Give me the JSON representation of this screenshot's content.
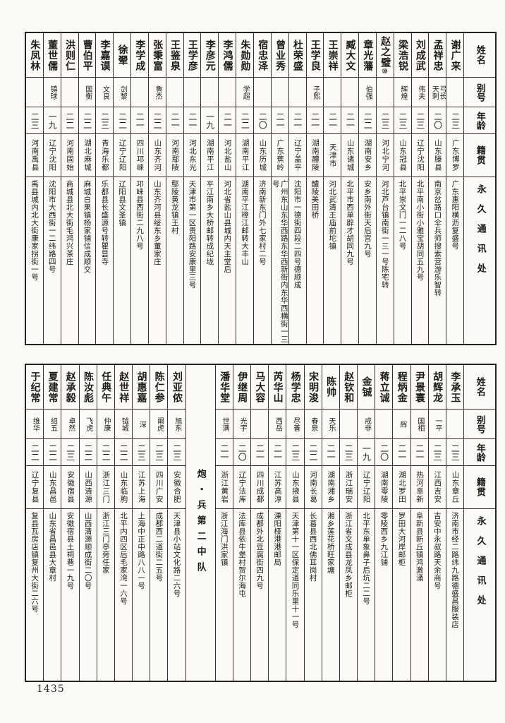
{
  "page": {
    "number": "1435"
  },
  "columns_header": {
    "name": "姓名",
    "alias": "别号",
    "age": "年龄",
    "origin": "籍贯",
    "address": "永久通讯处"
  },
  "tables": [
    {
      "id": "top",
      "entries": [
        {
          "name": "谢广来",
          "alias": "",
          "age": "二三",
          "origin": "广东博罗",
          "address": "广东惠阳横沥复盛号"
        },
        {
          "name": "孟祥忠",
          "alias": "弓长\n天刺",
          "age": "二〇",
          "origin": "山东滕县",
          "address": "南京岔路口伞兵师搜索营游乐智转"
        },
        {
          "name": "刘成武",
          "alias": "伟夫",
          "age": "二三",
          "origin": "辽宁沈阳",
          "address": "北平南小街小雅宝胡同五九号"
        },
        {
          "name": "梁浩锐",
          "alias": "辉煌",
          "age": "二三",
          "origin": "山东冠县",
          "address": "北平崇文门一二八号"
        },
        {
          "name": "赵之璧",
          "alias": "",
          "age": "二三",
          "origin": "河北宁河",
          "address": "河北芦台镇南街一三一号陈宅转",
          "note": "⑳"
        },
        {
          "name": "章光藩",
          "alias": "伯强",
          "age": "二二",
          "origin": "湖南安乡",
          "address": "安乡南外街天后宫九号"
        },
        {
          "name": "臧大文",
          "alias": "",
          "age": "二一",
          "origin": "山东诸城",
          "address": "北平市西单辟才胡同九号"
        },
        {
          "name": "王崇祥",
          "alias": "",
          "age": "二一",
          "origin": "天津市",
          "address": "河北武清王庙前坨镇"
        },
        {
          "name": "王学良",
          "alias": "子熙",
          "age": "二一",
          "origin": "湖南醴陵",
          "address": "醴陵美田桥"
        },
        {
          "name": "杜荣盛",
          "alias": "",
          "age": "二一",
          "origin": "辽宁盖平",
          "address": "沈阳市一德街四段二四号德顺成"
        },
        {
          "name": "曾业秀",
          "alias": "",
          "age": "二一",
          "origin": "广东蕉岭",
          "address": "广州东山东华西路东华西新街内东华西横街一三号"
        },
        {
          "name": "宿忠泽",
          "alias": "",
          "age": "二〇",
          "origin": "山东历城",
          "address": "济南新东门外七家村二号"
        },
        {
          "name": "朱勋勋",
          "alias": "学超",
          "age": "二二",
          "origin": "湖南平江",
          "address": "湖南平江樟江邮转大丰山"
        },
        {
          "name": "李鸿儒",
          "alias": "",
          "age": "二一",
          "origin": "河北盐山",
          "address": "河北省盐山县城内天主堂后"
        },
        {
          "name": "李彦元",
          "alias": "",
          "age": "一九",
          "origin": "湖南平江",
          "address": "平江南乡大桥邮转成纪垅"
        },
        {
          "name": "王学彦",
          "alias": "",
          "age": "二一",
          "origin": "河北东光",
          "address": "天津市第一区贵阳路安康里三号"
        },
        {
          "name": "王鉴泉",
          "alias": "",
          "age": "二一",
          "origin": "河南鄢陵",
          "address": "鄢陵黄龙镇王村"
        },
        {
          "name": "张秉富",
          "alias": "鲁杰",
          "age": "二二",
          "origin": "山东齐河",
          "address": "山东齐河县绥东乡董家庄"
        },
        {
          "name": "李学成",
          "alias": "",
          "age": "二一",
          "origin": "四川邛崃",
          "address": "邛崃县西街二九八号"
        },
        {
          "name": "徐翚",
          "alias": "剑黎",
          "age": "二二",
          "origin": "辽宁辽阳",
          "address": "辽阳县文圣镇"
        },
        {
          "name": "李嘉谟",
          "alias": "文良",
          "age": "二三",
          "origin": "青海乐都",
          "address": "乐都县长盛源号转瞿昙寺"
        },
        {
          "name": "曹伯平",
          "alias": "国衡",
          "age": "二二",
          "origin": "湖北麻城",
          "address": "麻城白果镇杨家铺信成顺交"
        },
        {
          "name": "洪则仁",
          "alias": "",
          "age": "二二",
          "origin": "河南固始",
          "address": "商城县北大街毛鸿兴茶庄"
        },
        {
          "name": "董世儒",
          "alias": "镇球",
          "age": "一九",
          "origin": "辽宁沈阳",
          "address": "沈阳市大西街一二纬路四号"
        },
        {
          "name": "朱凤林",
          "alias": "",
          "age": "二三",
          "origin": "河南禹县",
          "address": "禹县城内北大街康家拐街一号"
        }
      ]
    },
    {
      "id": "bottom",
      "entries": [
        {
          "name": "李承玉",
          "alias": "",
          "age": "二三",
          "origin": "山东章丘",
          "address": "济南市经二路纬九路德盛昌服装店"
        },
        {
          "name": "胡辉龙",
          "alias": "一平",
          "age": "二三",
          "origin": "江西吉安",
          "address": "吉安中永叔路天余商号"
        },
        {
          "name": "尹景寰",
          "alias": "国相",
          "age": "二一",
          "origin": "热河阜新",
          "address": "阜新县新丘镇鸿激涌"
        },
        {
          "name": "程炳金",
          "alias": "辉",
          "age": "二一",
          "origin": "湖北罗田",
          "address": "罗田大河岸邮柜"
        },
        {
          "name": "蒋立诚",
          "alias": "",
          "age": "二〇",
          "origin": "湖南零陵",
          "address": "零陵西乡九江铺"
        },
        {
          "name": "金铖",
          "alias": "戒非",
          "age": "一九",
          "origin": "辽宁辽阳",
          "address": "北平东单象鼻子后坑二二号"
        },
        {
          "name": "赵钦和",
          "alias": "",
          "age": "二三",
          "origin": "浙江瑞安",
          "address": "浙江省文成县龙凤乡邮柜"
        },
        {
          "name": "陈帅",
          "alias": "天乐",
          "age": "二一",
          "origin": "湖南湘乡",
          "address": "湘乡莲花桥旺家塘"
        },
        {
          "name": "宋明浚",
          "alias": "春泉",
          "age": "二二",
          "origin": "河南长葛",
          "address": "长葛县西北佛耳岗村"
        },
        {
          "name": "杨学忠",
          "alias": "尽善",
          "age": "二三",
          "origin": "山东掖县",
          "address": "天津第十一区保定道同乐里十一号"
        },
        {
          "name": "芮华山",
          "alias": "西岳",
          "age": "二一",
          "origin": "江苏高淳",
          "address": "溧阳桠港港邮局"
        },
        {
          "name": "马大容",
          "alias": "",
          "age": "二一",
          "origin": "四川成都",
          "address": "成都外北豆腐街四九号"
        },
        {
          "name": "伊继周",
          "alias": "光宇",
          "age": "二〇",
          "origin": "辽宁法库",
          "address": "法库县依牛堡村贺尔海屯"
        },
        {
          "name": "潘华堂",
          "alias": "世满",
          "age": "二一",
          "origin": "浙江黄岩",
          "address": "浙江海门洪家镇"
        },
        {
          "divider": "炮・兵第二中队"
        },
        {
          "name": "刘亚侬",
          "alias": "旭东",
          "age": "二三",
          "origin": "安徽合肥",
          "address": "天津县小站文化路二六号"
        },
        {
          "name": "陈仁参",
          "alias": "阚虎",
          "age": "二三",
          "origin": "四川广安",
          "address": "成都西二道街二五号"
        },
        {
          "name": "胡惠嘉",
          "alias": "深",
          "age": "二三",
          "origin": "江苏上海",
          "address": "上海中正中路八八一号"
        },
        {
          "name": "赵世祥",
          "alias": "钺城",
          "age": "二二",
          "origin": "山东临朐",
          "address": "北平内四区后毛家湾一六号"
        },
        {
          "name": "任典午",
          "alias": "仲康",
          "age": "二二",
          "origin": "浙江三门",
          "address": "浙江三门亭旁任家"
        },
        {
          "name": "陈汝彪",
          "alias": "飞虎",
          "age": "二二",
          "origin": "山西清源",
          "address": "山西清源顺成街二〇号"
        },
        {
          "name": "赵承毅",
          "alias": "卓然",
          "age": "二三",
          "origin": "安徽宿县",
          "address": "安徽宿县土祠巷一九号"
        },
        {
          "name": "夏建常",
          "alias": "绍五",
          "age": "二二",
          "origin": "山东昌邑",
          "address": "山东省昌邑县大章村"
        },
        {
          "name": "于纪常",
          "alias": "维华",
          "age": "二二",
          "origin": "辽宁复县",
          "address": "复县瓦房店镇复州大街二六号"
        }
      ]
    }
  ]
}
